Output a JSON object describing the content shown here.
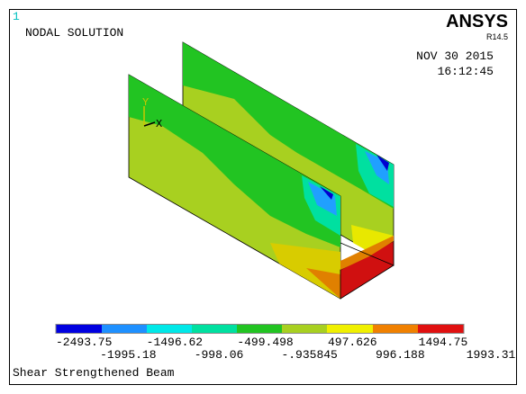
{
  "window_number": "1",
  "plot_title": "NODAL SOLUTION",
  "brand": "ANSYS",
  "version": "R14.5",
  "date": "NOV 30 2015",
  "time": "16:12:45",
  "triad": {
    "y": "Y",
    "x": "X"
  },
  "legend": {
    "top_labels": [
      "-2493.75",
      "-1496.62",
      "-499.498",
      "497.626",
      "1494.75"
    ],
    "bottom_labels": [
      "-1995.18",
      "-998.06",
      "-.935845",
      "996.188",
      "1993.31"
    ]
  },
  "footer": "Shear Strengthened Beam"
}
